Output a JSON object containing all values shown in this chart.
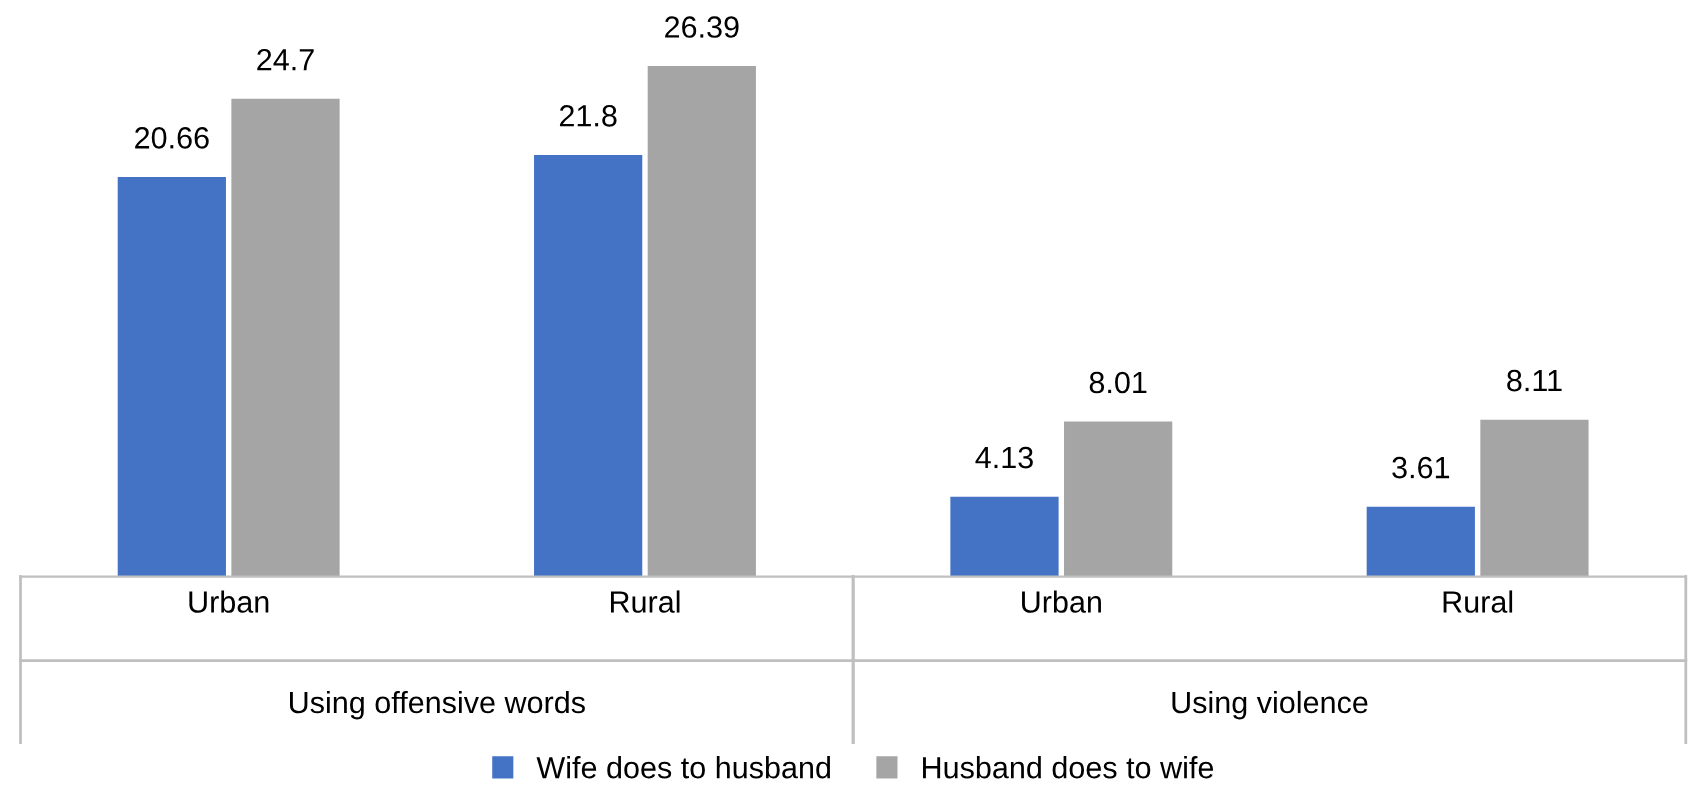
{
  "chart_data": {
    "type": "bar",
    "categories": [
      "Urban",
      "Rural",
      "Urban",
      "Rural"
    ],
    "series": [
      {
        "name": "Wife does to husband",
        "color": "#4472c4",
        "values": [
          20.66,
          21.8,
          4.13,
          3.61
        ]
      },
      {
        "name": "Husband does to wife",
        "color": "#a5a5a5",
        "values": [
          24.7,
          26.39,
          8.01,
          8.11
        ]
      }
    ],
    "data_labels": true,
    "legend": "bottom",
    "grid": false,
    "annotations": [
      "Using offensive words",
      "Using violence"
    ]
  }
}
